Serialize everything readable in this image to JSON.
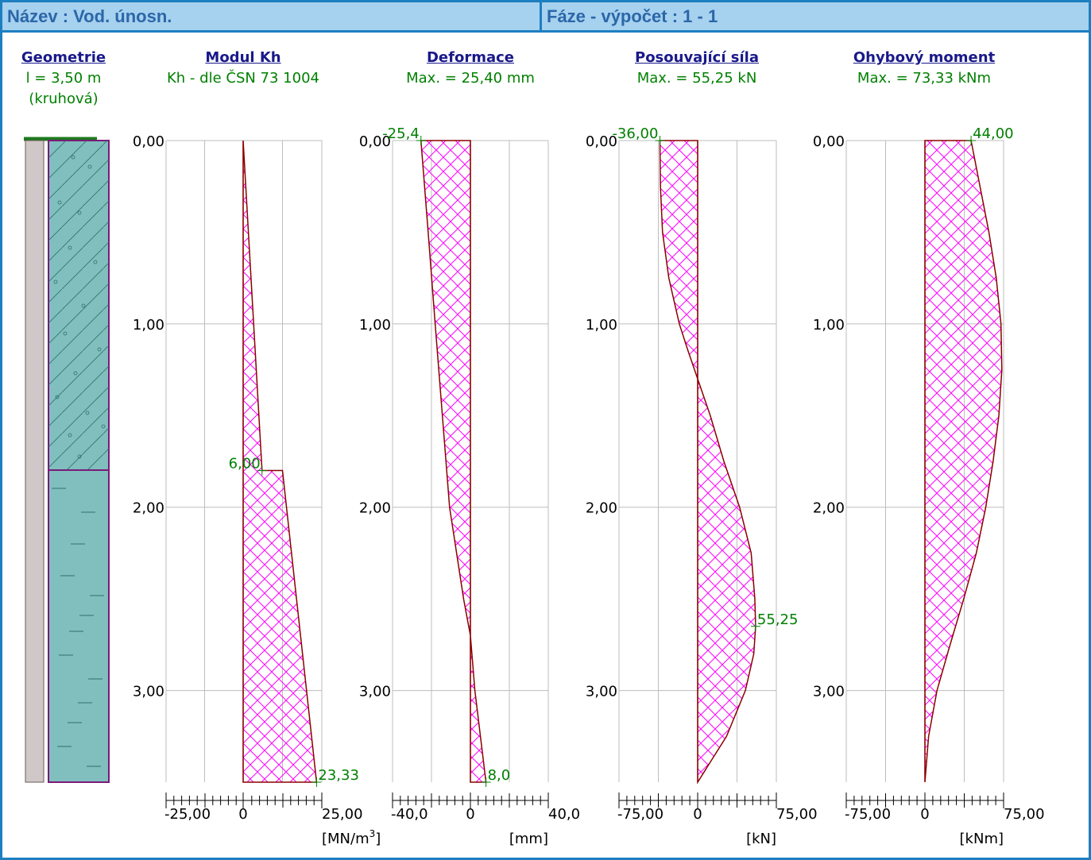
{
  "header": {
    "name": "Název : Vod. únosn.",
    "phase": "Fáze - výpočet : 1 - 1"
  },
  "columns": [
    {
      "title": "Geometrie",
      "lines": [
        "l = 3,50 m",
        "(kruhová)"
      ]
    },
    {
      "title": "Modul Kh",
      "lines": [
        "Kh - dle ČSN 73 1004"
      ]
    },
    {
      "title": "Deformace",
      "lines": [
        "Max. = 25,40 mm"
      ]
    },
    {
      "title": "Posouvající síla",
      "lines": [
        "Max. = 55,25 kN"
      ]
    },
    {
      "title": "Ohybový moment",
      "lines": [
        "Max. = 73,33 kNm"
      ]
    }
  ],
  "colors": {
    "hatch": "#ff00ff",
    "outline": "#8b0000",
    "label": "#008000",
    "grid": "#bdbdbd",
    "soil": "#80bfbd",
    "pile": "#d0c8c8",
    "layer_border": "#7a1a7a",
    "header_bg": "#a6d1ef",
    "header_border": "#1d7fc0",
    "header_text": "#2b67a8",
    "title": "#19198a"
  },
  "chart_data": [
    {
      "type": "area",
      "title": "Modul Kh",
      "ylim": [
        0,
        3.5
      ],
      "xlim": [
        -25,
        25
      ],
      "y_ticks": [
        "0,00",
        "1,00",
        "2,00",
        "3,00"
      ],
      "x_ticks": [
        "-25,00",
        "0",
        "25,00"
      ],
      "unit_base": "[MN/m",
      "unit_sup": "3",
      "unit_end": "]",
      "points": [
        [
          0,
          0
        ],
        [
          6.0,
          1.8
        ],
        [
          0,
          1.8
        ],
        [
          0,
          3.5
        ],
        [
          0,
          1.8
        ],
        [
          12.5,
          1.8
        ],
        [
          23.33,
          3.5
        ]
      ],
      "profile": {
        "y": [
          0,
          1.8,
          1.8,
          3.5
        ],
        "x": [
          0,
          6.0,
          12.5,
          23.33
        ]
      },
      "annotations": [
        {
          "text": "6,00",
          "x": 6.0,
          "y": 1.8
        },
        {
          "text": "23,33",
          "x": 23.33,
          "y": 3.5
        }
      ]
    },
    {
      "type": "area",
      "title": "Deformace",
      "ylim": [
        0,
        3.5
      ],
      "xlim": [
        -40,
        40
      ],
      "y_ticks": [
        "0,00",
        "1,00",
        "2,00",
        "3,00"
      ],
      "x_ticks": [
        "-40,0",
        "0",
        "40,0"
      ],
      "unit": "[mm]",
      "profile": {
        "y": [
          0,
          0.5,
          1.0,
          1.5,
          2.0,
          2.5,
          2.7,
          3.0,
          3.5
        ],
        "x": [
          -25.4,
          -21.7,
          -18.1,
          -14.4,
          -10.7,
          -3.5,
          0,
          2.3,
          8.0
        ]
      },
      "annotations": [
        {
          "text": "-25,4",
          "x": -25.4,
          "y": 0
        },
        {
          "text": "8,0",
          "x": 8.0,
          "y": 3.5
        }
      ]
    },
    {
      "type": "area",
      "title": "Posouvající síla",
      "ylim": [
        0,
        3.5
      ],
      "xlim": [
        -75,
        75
      ],
      "y_ticks": [
        "0,00",
        "1,00",
        "2,00",
        "3,00"
      ],
      "x_ticks": [
        "-75,00",
        "0",
        "75,00"
      ],
      "unit": "[kN]",
      "profile": {
        "y": [
          0,
          0.25,
          0.5,
          0.75,
          1.0,
          1.15,
          1.3,
          1.5,
          1.75,
          2.0,
          2.25,
          2.5,
          2.65,
          2.8,
          3.0,
          3.25,
          3.5
        ],
        "x": [
          -36.0,
          -35.5,
          -33.5,
          -27.5,
          -17.5,
          -9.0,
          0,
          12.0,
          25.0,
          40.0,
          51.0,
          54.5,
          55.25,
          53.5,
          45.5,
          27.5,
          0
        ]
      },
      "annotations": [
        {
          "text": "-36,00",
          "x": -36.0,
          "y": 0
        },
        {
          "text": "55,25",
          "x": 55.25,
          "y": 2.65
        }
      ]
    },
    {
      "type": "area",
      "title": "Ohybový moment",
      "ylim": [
        0,
        3.5
      ],
      "xlim": [
        -75,
        75
      ],
      "y_ticks": [
        "0,00",
        "1,00",
        "2,00",
        "3,00"
      ],
      "x_ticks": [
        "-75,00",
        "0",
        "75,00"
      ],
      "unit": "[kNm]",
      "profile": {
        "y": [
          0,
          0.25,
          0.5,
          0.75,
          1.0,
          1.25,
          1.5,
          1.75,
          2.0,
          2.25,
          2.5,
          2.75,
          3.0,
          3.25,
          3.5
        ],
        "x": [
          44.0,
          52.5,
          61.0,
          68.0,
          72.5,
          73.33,
          70.5,
          65.0,
          58.0,
          49.0,
          37.0,
          24.0,
          11.5,
          3.5,
          0
        ]
      },
      "annotations": [
        {
          "text": "44,00",
          "x": 44.0,
          "y": 0
        }
      ]
    }
  ]
}
